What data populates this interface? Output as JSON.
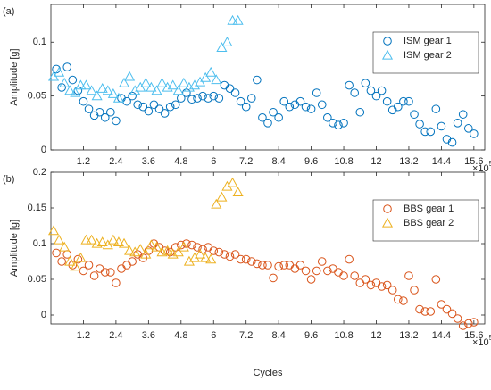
{
  "chart_data": [
    {
      "type": "scatter",
      "panel_label": "(a)",
      "ylabel": "Amplitude [g]",
      "xlim": [
        0,
        16
      ],
      "ylim": [
        0,
        0.135
      ],
      "xticks": [
        1.2,
        2.4,
        3.6,
        4.8,
        6,
        7.2,
        8.4,
        9.6,
        10.8,
        12,
        13.2,
        14.4,
        15.6
      ],
      "yticks": [
        0,
        0.05,
        0.1
      ],
      "x_exponent": {
        "base": "×10",
        "power": "5"
      },
      "legend": "upper right",
      "series": [
        {
          "name": "ISM gear 1",
          "color": "#0072BD",
          "marker": "circle",
          "x": [
            0.2,
            0.4,
            0.6,
            0.8,
            1.0,
            1.2,
            1.4,
            1.6,
            1.8,
            2.0,
            2.2,
            2.4,
            2.6,
            2.8,
            3.0,
            3.2,
            3.4,
            3.6,
            3.8,
            4.0,
            4.2,
            4.4,
            4.6,
            4.8,
            5.0,
            5.2,
            5.4,
            5.6,
            5.8,
            6.0,
            6.2,
            6.4,
            6.6,
            6.8,
            7.0,
            7.2,
            7.4,
            7.6,
            7.8,
            8.0,
            8.2,
            8.4,
            8.6,
            8.8,
            9.0,
            9.2,
            9.4,
            9.6,
            9.8,
            10.0,
            10.2,
            10.4,
            10.6,
            10.8,
            11.0,
            11.2,
            11.4,
            11.6,
            11.8,
            12.0,
            12.2,
            12.4,
            12.6,
            12.8,
            13.0,
            13.2,
            13.4,
            13.6,
            13.8,
            14.0,
            14.2,
            14.4,
            14.6,
            14.8,
            15.0,
            15.2,
            15.4,
            15.6
          ],
          "values": [
            0.075,
            0.058,
            0.077,
            0.065,
            0.055,
            0.045,
            0.038,
            0.032,
            0.035,
            0.03,
            0.035,
            0.027,
            0.048,
            0.045,
            0.05,
            0.042,
            0.04,
            0.036,
            0.042,
            0.038,
            0.034,
            0.04,
            0.042,
            0.048,
            0.053,
            0.047,
            0.048,
            0.05,
            0.048,
            0.05,
            0.048,
            0.06,
            0.057,
            0.053,
            0.045,
            0.04,
            0.048,
            0.065,
            0.03,
            0.025,
            0.035,
            0.03,
            0.045,
            0.04,
            0.042,
            0.045,
            0.04,
            0.038,
            0.053,
            0.042,
            0.03,
            0.025,
            0.023,
            0.025,
            0.06,
            0.053,
            0.035,
            0.062,
            0.055,
            0.05,
            0.055,
            0.045,
            0.037,
            0.04,
            0.045,
            0.045,
            0.033,
            0.024,
            0.017,
            0.017,
            0.038,
            0.022,
            0.01,
            0.007,
            0.025,
            0.033,
            0.02,
            0.015
          ]
        },
        {
          "name": "ISM gear 2",
          "color": "#4DBEEE",
          "marker": "triangle",
          "x": [
            0.1,
            0.3,
            0.5,
            0.7,
            0.9,
            1.1,
            1.3,
            1.5,
            1.7,
            1.9,
            2.1,
            2.3,
            2.5,
            2.7,
            2.9,
            3.1,
            3.3,
            3.5,
            3.7,
            3.9,
            4.1,
            4.3,
            4.5,
            4.7,
            4.9,
            5.1,
            5.3,
            5.5,
            5.7,
            5.9,
            6.1,
            6.3,
            6.5,
            6.7,
            6.9
          ],
          "values": [
            0.068,
            0.072,
            0.062,
            0.055,
            0.053,
            0.06,
            0.06,
            0.055,
            0.05,
            0.057,
            0.055,
            0.052,
            0.048,
            0.062,
            0.068,
            0.055,
            0.058,
            0.062,
            0.058,
            0.055,
            0.062,
            0.058,
            0.06,
            0.055,
            0.062,
            0.058,
            0.06,
            0.063,
            0.067,
            0.072,
            0.065,
            0.095,
            0.1,
            0.12,
            0.12
          ]
        }
      ]
    },
    {
      "type": "scatter",
      "panel_label": "(b)",
      "ylabel": "Amplitude [g]",
      "xlabel": "Cycles",
      "xlim": [
        0,
        16
      ],
      "ylim": [
        -0.0125,
        0.2
      ],
      "xticks": [
        1.2,
        2.4,
        3.6,
        4.8,
        6,
        7.2,
        8.4,
        9.6,
        10.8,
        12,
        13.2,
        14.4,
        15.6
      ],
      "yticks": [
        0,
        0.05,
        0.1,
        0.15,
        0.2
      ],
      "x_exponent": {
        "base": "×10",
        "power": "5"
      },
      "legend": "upper right",
      "series": [
        {
          "name": "BBS gear 1",
          "color": "#D95319",
          "marker": "circle",
          "x": [
            0.2,
            0.4,
            0.6,
            0.8,
            1.0,
            1.2,
            1.4,
            1.6,
            1.8,
            2.0,
            2.2,
            2.4,
            2.6,
            2.8,
            3.0,
            3.2,
            3.4,
            3.6,
            3.8,
            4.0,
            4.2,
            4.4,
            4.6,
            4.8,
            5.0,
            5.2,
            5.4,
            5.6,
            5.8,
            6.0,
            6.2,
            6.4,
            6.6,
            6.8,
            7.0,
            7.2,
            7.4,
            7.6,
            7.8,
            8.0,
            8.2,
            8.4,
            8.6,
            8.8,
            9.0,
            9.2,
            9.4,
            9.6,
            9.8,
            10.0,
            10.2,
            10.4,
            10.6,
            10.8,
            11.0,
            11.2,
            11.4,
            11.6,
            11.8,
            12.0,
            12.2,
            12.4,
            12.6,
            12.8,
            13.0,
            13.2,
            13.4,
            13.6,
            13.8,
            14.0,
            14.2,
            14.4,
            14.6,
            14.8,
            15.0,
            15.2,
            15.4,
            15.6
          ],
          "values": [
            0.087,
            0.075,
            0.085,
            0.07,
            0.078,
            0.062,
            0.07,
            0.055,
            0.065,
            0.06,
            0.06,
            0.045,
            0.065,
            0.07,
            0.075,
            0.085,
            0.08,
            0.09,
            0.1,
            0.095,
            0.09,
            0.088,
            0.095,
            0.098,
            0.1,
            0.098,
            0.095,
            0.092,
            0.095,
            0.09,
            0.088,
            0.085,
            0.082,
            0.085,
            0.078,
            0.078,
            0.075,
            0.072,
            0.07,
            0.07,
            0.052,
            0.068,
            0.07,
            0.07,
            0.065,
            0.07,
            0.062,
            0.05,
            0.062,
            0.075,
            0.062,
            0.065,
            0.06,
            0.055,
            0.078,
            0.055,
            0.045,
            0.05,
            0.042,
            0.045,
            0.04,
            0.042,
            0.035,
            0.022,
            0.02,
            0.055,
            0.035,
            0.008,
            0.005,
            0.005,
            0.05,
            0.015,
            0.008,
            0.002,
            -0.005,
            -0.015,
            -0.012,
            -0.01
          ]
        },
        {
          "name": "BBS gear 2",
          "color": "#EDB120",
          "marker": "triangle",
          "x": [
            0.1,
            0.3,
            0.5,
            0.7,
            0.9,
            1.1,
            1.3,
            1.5,
            1.7,
            1.9,
            2.1,
            2.3,
            2.5,
            2.7,
            2.9,
            3.1,
            3.3,
            3.5,
            3.7,
            3.9,
            4.1,
            4.3,
            4.5,
            4.7,
            4.9,
            5.1,
            5.3,
            5.5,
            5.7,
            5.9,
            6.1,
            6.3,
            6.5,
            6.7,
            6.9
          ],
          "values": [
            0.118,
            0.105,
            0.095,
            0.075,
            0.068,
            0.08,
            0.105,
            0.105,
            0.1,
            0.102,
            0.098,
            0.105,
            0.102,
            0.1,
            0.09,
            0.088,
            0.092,
            0.085,
            0.098,
            0.095,
            0.088,
            0.09,
            0.085,
            0.088,
            0.095,
            0.075,
            0.08,
            0.085,
            0.08,
            0.078,
            0.155,
            0.165,
            0.18,
            0.185,
            0.172
          ]
        }
      ]
    }
  ]
}
